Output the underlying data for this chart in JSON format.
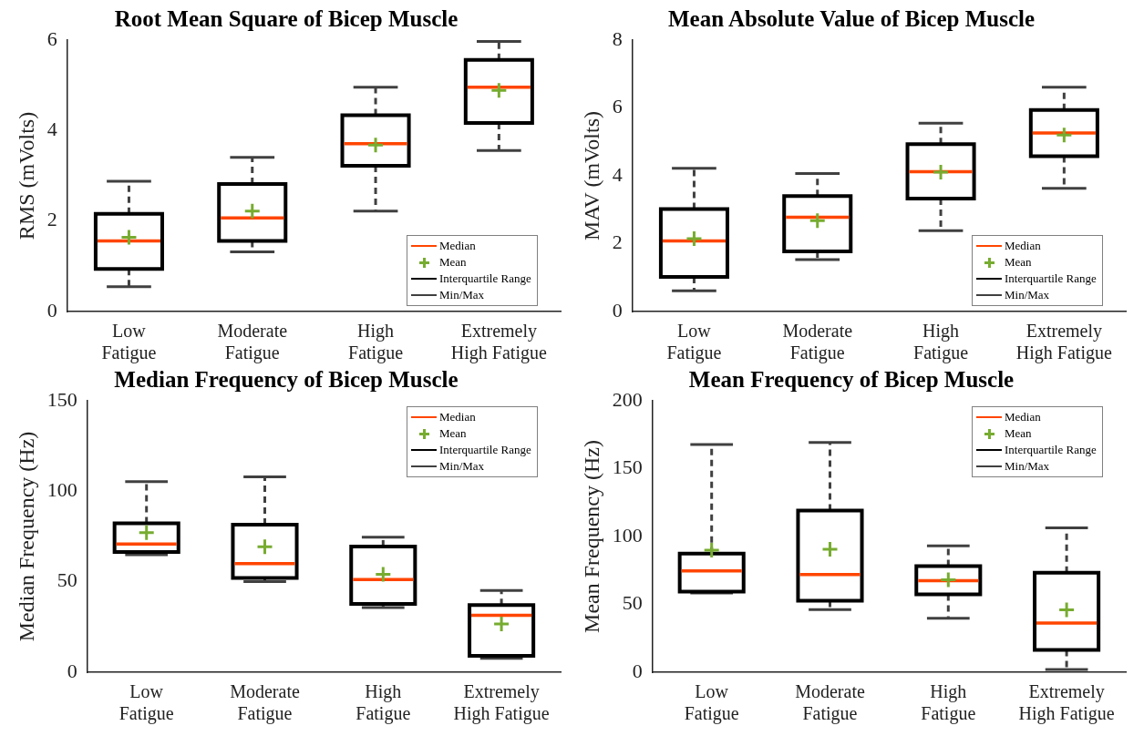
{
  "chart_data": [
    {
      "type": "box",
      "title": "Root Mean Square of Bicep Muscle",
      "ylabel": "RMS (mVolts)",
      "categories": [
        "Low Fatigue",
        "Moderate Fatigue",
        "High Fatigue",
        "Extremely High Fatigue"
      ],
      "ylim": [
        0,
        6
      ],
      "yticks": [
        0,
        2,
        4,
        6
      ],
      "marker": "cross",
      "line_style": "dashed",
      "grid": false,
      "annotations": [
        "Median",
        "Mean",
        "Interquartile Range",
        "Min/Max"
      ],
      "series": [
        {
          "color": "#000000",
          "boxes": [
            {
              "low": 0.55,
              "q1": 0.94,
              "median": 1.56,
              "q3": 2.16,
              "high": 2.88,
              "mean": 1.64
            },
            {
              "low": 1.32,
              "q1": 1.56,
              "median": 2.07,
              "q3": 2.82,
              "high": 3.41,
              "mean": 2.22
            },
            {
              "low": 2.22,
              "q1": 3.22,
              "median": 3.71,
              "q3": 4.34,
              "high": 4.96,
              "mean": 3.68
            },
            {
              "low": 3.56,
              "q1": 4.17,
              "median": 4.96,
              "q3": 5.56,
              "high": 5.97,
              "mean": 4.89
            }
          ]
        }
      ]
    },
    {
      "type": "box",
      "title": "Mean Absolute Value of Bicep Muscle",
      "ylabel": "MAV (mVolts)",
      "categories": [
        "Low Fatigue",
        "Moderate Fatigue",
        "High Fatigue",
        "Extremely High Fatigue"
      ],
      "ylim": [
        0,
        8
      ],
      "yticks": [
        0,
        2,
        4,
        6,
        8
      ],
      "marker": "cross",
      "line_style": "dashed",
      "grid": false,
      "annotations": [
        "Median",
        "Mean",
        "Interquartile Range",
        "Min/Max"
      ],
      "series": [
        {
          "color": "#000000",
          "boxes": [
            {
              "low": 0.61,
              "q1": 1.02,
              "median": 2.08,
              "q3": 3.02,
              "high": 4.22,
              "mean": 2.15
            },
            {
              "low": 1.53,
              "q1": 1.77,
              "median": 2.78,
              "q3": 3.4,
              "high": 4.07,
              "mean": 2.68
            },
            {
              "low": 2.38,
              "q1": 3.33,
              "median": 4.12,
              "q3": 4.93,
              "high": 5.55,
              "mean": 4.11
            },
            {
              "low": 3.63,
              "q1": 4.58,
              "median": 5.26,
              "q3": 5.94,
              "high": 6.61,
              "mean": 5.2
            }
          ]
        }
      ]
    },
    {
      "type": "box",
      "title": "Median Frequency of Bicep Muscle",
      "ylabel": "Median Frequency (Hz)",
      "categories": [
        "Low Fatigue",
        "Moderate Fatigue",
        "High Fatigue",
        "Extremely High Fatigue"
      ],
      "ylim": [
        0,
        150
      ],
      "yticks": [
        0,
        50,
        100,
        150
      ],
      "marker": "cross",
      "line_style": "dashed",
      "grid": false,
      "annotations": [
        "Median",
        "Mean",
        "Interquartile Range",
        "Min/Max"
      ],
      "series": [
        {
          "color": "#000000",
          "boxes": [
            {
              "low": 64.9,
              "q1": 66.5,
              "median": 70.9,
              "q3": 82.3,
              "high": 105.3,
              "mean": 77.1
            },
            {
              "low": 50.1,
              "q1": 52.1,
              "median": 60,
              "q3": 81.5,
              "high": 108,
              "mean": 69.3
            },
            {
              "low": 35.8,
              "q1": 37.8,
              "median": 51.2,
              "q3": 69.5,
              "high": 74.6,
              "mean": 54.1
            },
            {
              "low": 7.7,
              "q1": 9.1,
              "median": 31.4,
              "q3": 37.1,
              "high": 45.2,
              "mean": 26.7
            }
          ]
        }
      ]
    },
    {
      "type": "box",
      "title": "Mean Frequency of Bicep Muscle",
      "ylabel": "Mean Frequency (Hz)",
      "categories": [
        "Low Fatigue",
        "Moderate Fatigue",
        "High Fatigue",
        "Extremely High Fatigue"
      ],
      "ylim": [
        0,
        200
      ],
      "yticks": [
        0,
        50,
        100,
        150,
        200
      ],
      "marker": "cross",
      "line_style": "dashed",
      "grid": false,
      "annotations": [
        "Median",
        "Mean",
        "Interquartile Range",
        "Min/Max"
      ],
      "series": [
        {
          "color": "#000000",
          "boxes": [
            {
              "low": 58.4,
              "q1": 59.4,
              "median": 74.7,
              "q3": 87.4,
              "high": 167.8,
              "mean": 89.9
            },
            {
              "low": 46.2,
              "q1": 52.7,
              "median": 71.9,
              "q3": 119.1,
              "high": 169.3,
              "mean": 90.6
            },
            {
              "low": 39.7,
              "q1": 57.4,
              "median": 67.4,
              "q3": 78.2,
              "high": 93.1,
              "mean": 68.2
            },
            {
              "low": 2,
              "q1": 16.5,
              "median": 36.2,
              "q3": 73.4,
              "high": 106.4,
              "mean": 45.9
            }
          ]
        }
      ]
    }
  ]
}
